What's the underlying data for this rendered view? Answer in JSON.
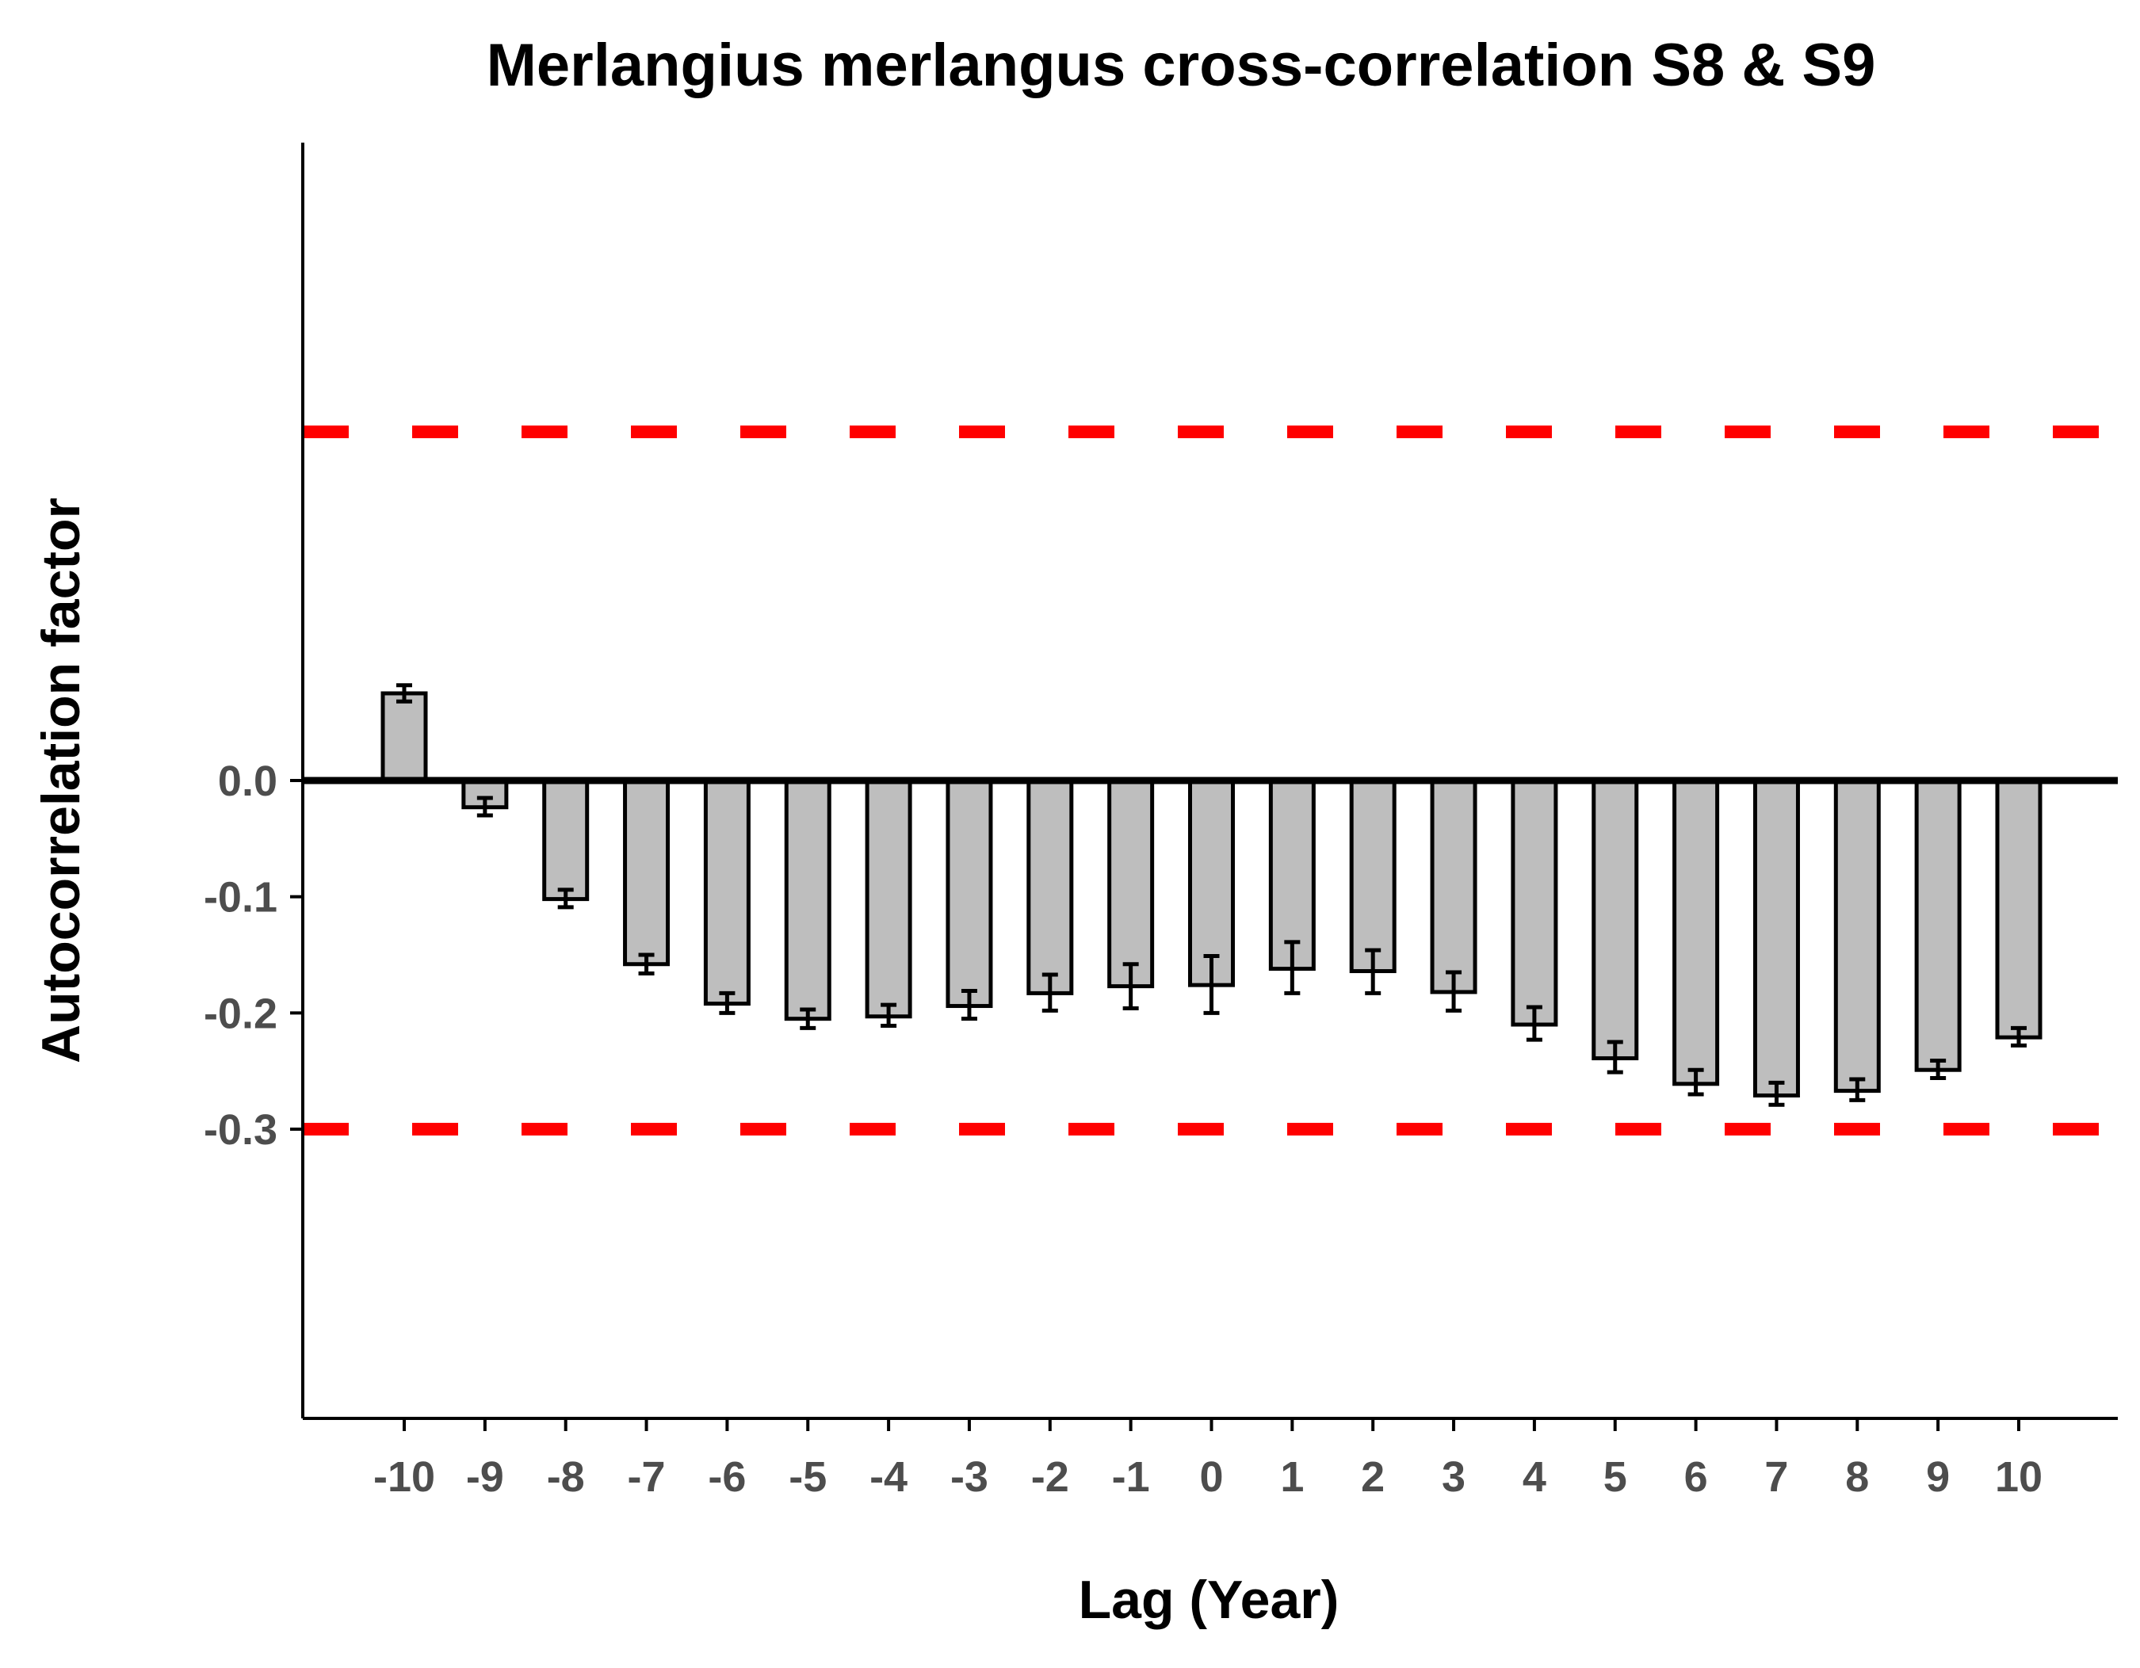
{
  "chart_data": {
    "type": "bar",
    "title": "Merlangius merlangus cross-correlation S8 & S9",
    "xlabel": "Lag (Year)",
    "ylabel": "Autocorrelation factor",
    "categories": [
      "-10",
      "-9",
      "-8",
      "-7",
      "-6",
      "-5",
      "-4",
      "-3",
      "-2",
      "-1",
      "0",
      "1",
      "2",
      "3",
      "4",
      "5",
      "6",
      "7",
      "8",
      "9",
      "10"
    ],
    "values": [
      0.075,
      -0.023,
      -0.102,
      -0.158,
      -0.192,
      -0.205,
      -0.203,
      -0.194,
      -0.183,
      -0.177,
      -0.176,
      -0.162,
      -0.164,
      -0.182,
      -0.21,
      -0.239,
      -0.261,
      -0.271,
      -0.267,
      -0.249,
      -0.221
    ],
    "error_low": [
      0.068,
      -0.03,
      -0.109,
      -0.166,
      -0.2,
      -0.213,
      -0.211,
      -0.205,
      -0.198,
      -0.196,
      -0.2,
      -0.183,
      -0.183,
      -0.198,
      -0.223,
      -0.251,
      -0.27,
      -0.279,
      -0.275,
      -0.256,
      -0.228
    ],
    "error_high": [
      0.082,
      -0.015,
      -0.094,
      -0.15,
      -0.183,
      -0.197,
      -0.193,
      -0.181,
      -0.167,
      -0.158,
      -0.151,
      -0.139,
      -0.146,
      -0.165,
      -0.195,
      -0.225,
      -0.249,
      -0.26,
      -0.257,
      -0.241,
      -0.213
    ],
    "y_ticks": [
      "0.0",
      "-0.1",
      "-0.2",
      "-0.3"
    ],
    "reference_lines": [
      0.3,
      -0.3
    ],
    "ylim": [
      -0.33,
      0.33
    ],
    "grid": false,
    "colors": {
      "bar_fill": "#bebebe",
      "bar_outline": "#000000",
      "reference_line": "#ff0000",
      "zero_line": "#000000"
    }
  }
}
